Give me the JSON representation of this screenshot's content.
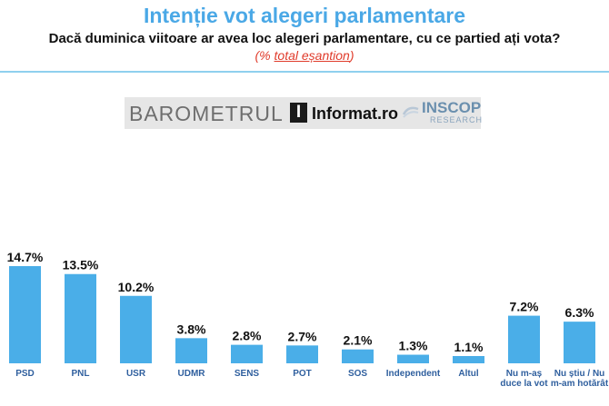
{
  "header": {
    "title": "Intenție vot alegeri parlamentare",
    "question": "Dacă duminica viitoare ar avea loc alegeri parlamentare, cu ce partied ați vota?",
    "note_prefix": "(% ",
    "note_underlined": "total eșantion",
    "note_suffix": ")"
  },
  "logos": {
    "barometrul": "BAROMETRUL",
    "informat_letter": "I",
    "informat": "Informat.ro",
    "inscop": "INSCOP",
    "research": "RESEARCH"
  },
  "colors": {
    "title": "#4aa8e6",
    "bar": "#4aaee8",
    "divider": "#8fd0ee",
    "note": "#e03b2b",
    "category_text": "#2f5f9e"
  },
  "chart_data": {
    "type": "bar",
    "title": "Intenție vot alegeri parlamentare",
    "categories": [
      "PSD",
      "PNL",
      "USR",
      "UDMR",
      "SENS",
      "POT",
      "SOS",
      "Independent",
      "Altul",
      "Nu m-aș duce la vot",
      "Nu știu / Nu m-am hotărât"
    ],
    "category_lines": [
      [
        "PSD"
      ],
      [
        "PNL"
      ],
      [
        "USR"
      ],
      [
        "UDMR"
      ],
      [
        "SENS"
      ],
      [
        "POT"
      ],
      [
        "SOS"
      ],
      [
        "Independent"
      ],
      [
        "Altul"
      ],
      [
        "Nu m-aș",
        "duce la vot"
      ],
      [
        "Nu știu / Nu",
        "m-am hotărât"
      ]
    ],
    "values": [
      14.7,
      13.5,
      10.2,
      3.8,
      2.8,
      2.7,
      2.1,
      1.3,
      1.1,
      7.2,
      6.3
    ],
    "value_labels": [
      "14.7%",
      "13.5%",
      "10.2%",
      "3.8%",
      "2.8%",
      "2.7%",
      "2.1%",
      "1.3%",
      "1.1%",
      "7.2%",
      "6.3%"
    ],
    "xlabel": "",
    "ylabel": "",
    "ylim": [
      0,
      14.7
    ],
    "grid": false,
    "legend": "none"
  }
}
